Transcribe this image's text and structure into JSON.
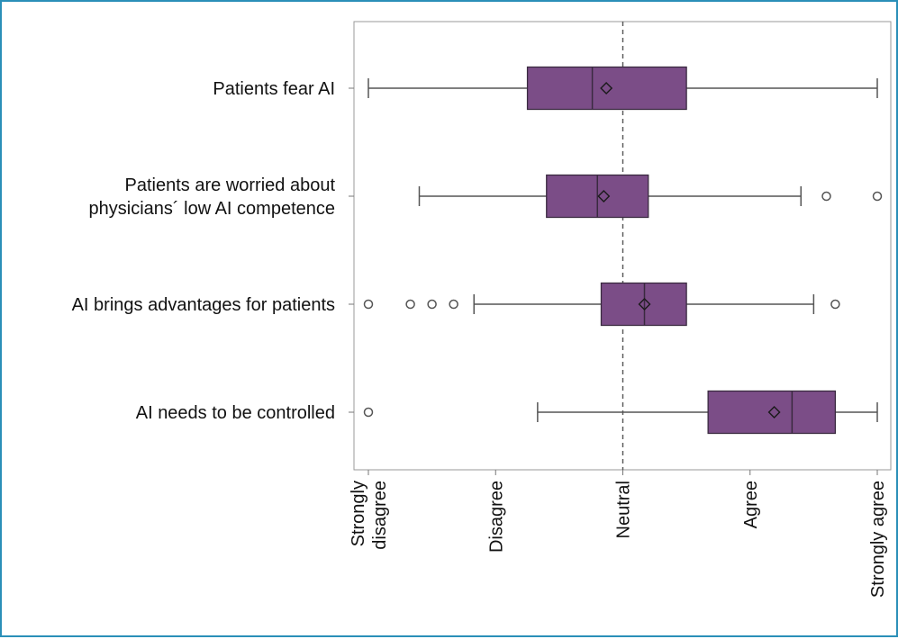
{
  "chart_data": {
    "type": "boxplot",
    "orientation": "horizontal",
    "x_scale": {
      "min": 1,
      "max": 5
    },
    "x_ticks": [
      {
        "value": 1,
        "label": [
          "Strongly",
          "disagree"
        ]
      },
      {
        "value": 2,
        "label": [
          "Disagree"
        ]
      },
      {
        "value": 3,
        "label": [
          "Neutral"
        ]
      },
      {
        "value": 4,
        "label": [
          "Agree"
        ]
      },
      {
        "value": 5,
        "label": [
          "Strongly agree"
        ]
      }
    ],
    "reference_line": {
      "value": 3,
      "style": "dashed"
    },
    "colors": {
      "box_fill": "#7b4d87",
      "box_stroke": "#3a2a40",
      "whisker": "#555555",
      "outlier": "#555555",
      "reference": "#555555"
    },
    "categories": [
      {
        "label": [
          "Patients fear AI"
        ],
        "whisker_low": 1.0,
        "q1": 2.25,
        "median": 2.76,
        "mean": 2.87,
        "q3": 3.5,
        "whisker_high": 5.0,
        "outliers": []
      },
      {
        "label": [
          "Patients are worried about",
          "physicians´ low AI competence"
        ],
        "whisker_low": 1.4,
        "q1": 2.4,
        "median": 2.8,
        "mean": 2.85,
        "q3": 3.2,
        "whisker_high": 4.4,
        "outliers": [
          4.6,
          5.0
        ]
      },
      {
        "label": [
          "AI brings advantages for patients"
        ],
        "whisker_low": 1.83,
        "q1": 2.83,
        "median": 3.17,
        "mean": 3.17,
        "q3": 3.5,
        "whisker_high": 4.5,
        "outliers": [
          1.0,
          1.33,
          1.5,
          1.67,
          4.67
        ]
      },
      {
        "label": [
          "AI needs to be controlled"
        ],
        "whisker_low": 2.33,
        "q1": 3.67,
        "median": 4.33,
        "mean": 4.19,
        "q3": 4.67,
        "whisker_high": 5.0,
        "outliers": [
          1.0
        ]
      }
    ]
  }
}
